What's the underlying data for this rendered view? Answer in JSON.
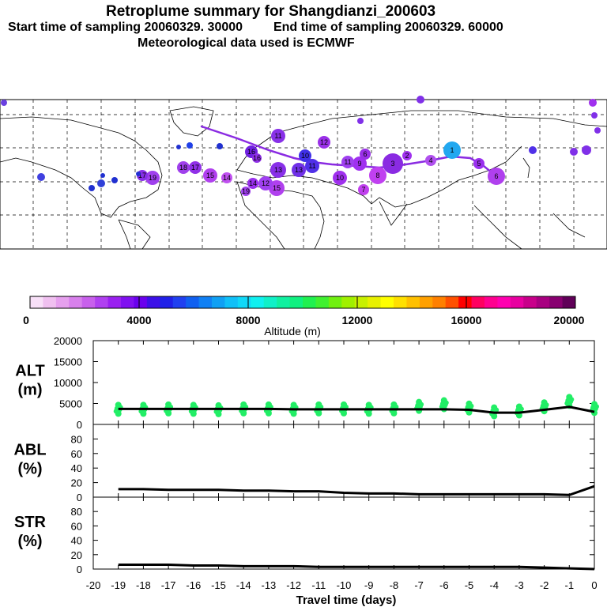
{
  "header": {
    "title": "Retroplume summary for Shangdianzi_200603",
    "subtitle_start": "Start time of sampling 20060329. 30000",
    "subtitle_end": "End time of sampling 20060329. 60000",
    "met_note": "Meteorological data used is ECMWF"
  },
  "colorbar": {
    "label": "Altitude (m)",
    "ticks": [
      "0",
      "4000",
      "8000",
      "12000",
      "16000",
      "20000"
    ],
    "range": [
      0,
      20000
    ],
    "colors": [
      "#f8e0f8",
      "#f0c0f0",
      "#e6a0ee",
      "#d880ec",
      "#c860ec",
      "#b040f0",
      "#9a20f0",
      "#8010f0",
      "#6a00ee",
      "#3c10e8",
      "#2020e8",
      "#2040f0",
      "#1060f0",
      "#1080f4",
      "#10a0f4",
      "#10c0f8",
      "#10d8f8",
      "#10f0f0",
      "#10f0c8",
      "#10f0a0",
      "#10f080",
      "#20f050",
      "#40f030",
      "#70f010",
      "#a0f000",
      "#c8f000",
      "#e8f000",
      "#ffff00",
      "#ffe000",
      "#ffc000",
      "#ffa000",
      "#ff8000",
      "#ff5000",
      "#ff0000",
      "#ff0060",
      "#ff0090",
      "#ff00b0",
      "#e800a0",
      "#c8008a",
      "#a80080",
      "#880070",
      "#600058"
    ]
  },
  "map": {
    "trajectory_color": "#8a2be2",
    "plume_labels": [
      "1",
      "2",
      "3",
      "4",
      "5",
      "6",
      "7",
      "8",
      "9",
      "10",
      "11",
      "12",
      "13",
      "14",
      "15",
      "16",
      "17",
      "18",
      "19"
    ]
  },
  "chart_data": [
    {
      "type": "line",
      "name": "ALT",
      "ylabel_line1": "ALT",
      "ylabel_line2": "(m)",
      "ylim": [
        0,
        20000
      ],
      "yticks": [
        "20000",
        "15000",
        "10000",
        "5000",
        "0"
      ],
      "x": [
        -19,
        -18,
        -17,
        -16,
        -15,
        -14,
        -13,
        -12,
        -11,
        -10,
        -9,
        -8,
        -7,
        -6,
        -5,
        -4,
        -3,
        -2,
        -1,
        0
      ],
      "values": [
        3700,
        3700,
        3700,
        3700,
        3700,
        3700,
        3700,
        3600,
        3600,
        3600,
        3600,
        3600,
        3600,
        3600,
        3500,
        2800,
        2800,
        3500,
        4200,
        3000
      ],
      "scatter_color": "#22ee66",
      "scatter_y": [
        3700,
        3700,
        3800,
        3700,
        3600,
        3800,
        3800,
        3700,
        3800,
        3800,
        3700,
        3800,
        4400,
        4800,
        4000,
        3100,
        3300,
        4300,
        5600,
        3900
      ]
    },
    {
      "type": "line",
      "name": "ABL",
      "ylabel_line1": "ABL",
      "ylabel_line2": "(%)",
      "ylim": [
        0,
        100
      ],
      "yticks": [
        "80",
        "60",
        "40",
        "20",
        "0"
      ],
      "x": [
        -19,
        -18,
        -17,
        -16,
        -15,
        -14,
        -13,
        -12,
        -11,
        -10,
        -9,
        -8,
        -7,
        -6,
        -5,
        -4,
        -3,
        -2,
        -1,
        0
      ],
      "values": [
        11,
        11,
        10,
        10,
        10,
        9,
        9,
        8,
        8,
        6,
        5,
        5,
        4,
        4,
        4,
        4,
        4,
        4,
        3,
        15
      ]
    },
    {
      "type": "line",
      "name": "STR",
      "ylabel_line1": "STR",
      "ylabel_line2": "(%)",
      "ylim": [
        0,
        100
      ],
      "yticks": [
        "80",
        "60",
        "40",
        "20",
        "0"
      ],
      "x": [
        -19,
        -18,
        -17,
        -16,
        -15,
        -14,
        -13,
        -12,
        -11,
        -10,
        -9,
        -8,
        -7,
        -6,
        -5,
        -4,
        -3,
        -2,
        -1,
        0
      ],
      "values": [
        6,
        6,
        6,
        5,
        5,
        4,
        4,
        4,
        3,
        3,
        3,
        3,
        3,
        3,
        3,
        3,
        3,
        2,
        1,
        0
      ]
    }
  ],
  "xaxis": {
    "label": "Travel time (days)",
    "ticks": [
      "-20",
      "-19",
      "-18",
      "-17",
      "-16",
      "-15",
      "-14",
      "-13",
      "-12",
      "-11",
      "-10",
      "-9",
      "-8",
      "-7",
      "-6",
      "-5",
      "-4",
      "-3",
      "-2",
      "-1",
      "0"
    ]
  }
}
